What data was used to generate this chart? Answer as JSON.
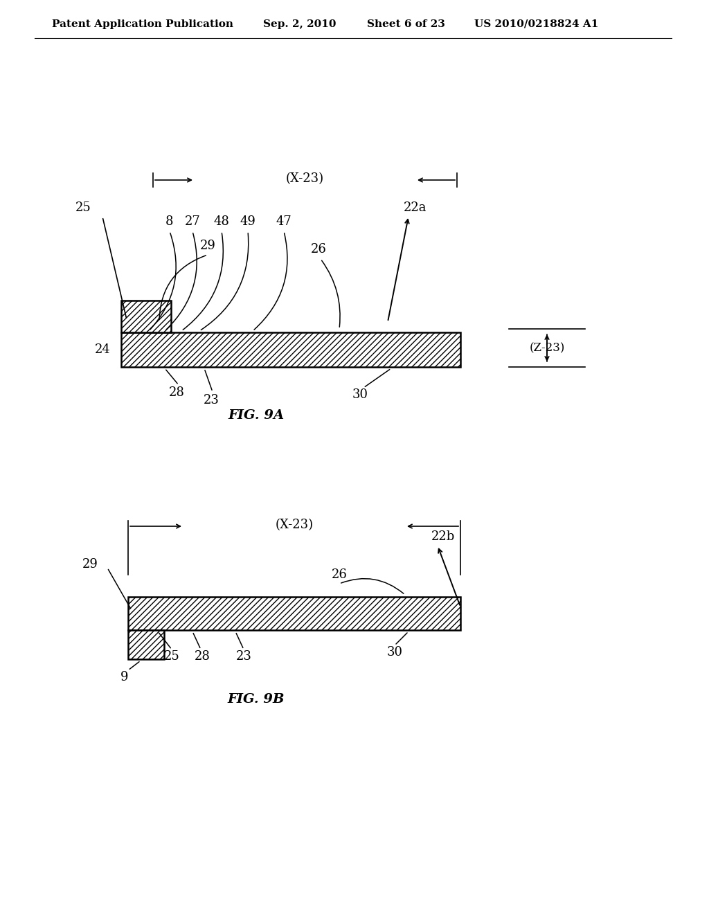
{
  "bg_color": "#ffffff",
  "header_text": "Patent Application Publication",
  "header_date": "Sep. 2, 2010",
  "header_sheet": "Sheet 6 of 23",
  "header_patent": "US 2010/0218824 A1",
  "fig9a_title": "FIG. 9A",
  "fig9b_title": "FIG. 9B"
}
